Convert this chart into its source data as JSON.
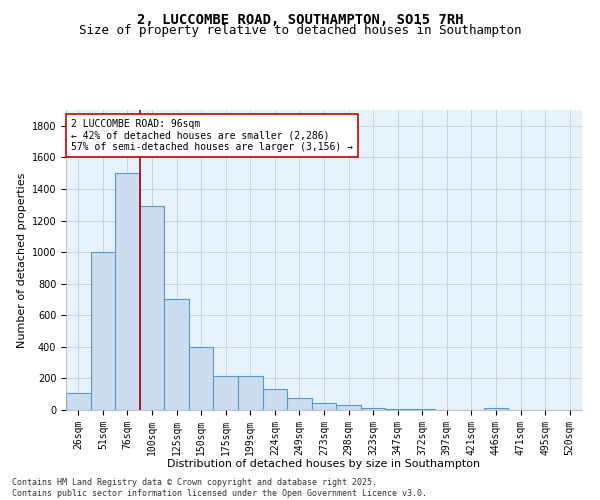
{
  "title_line1": "2, LUCCOMBE ROAD, SOUTHAMPTON, SO15 7RH",
  "title_line2": "Size of property relative to detached houses in Southampton",
  "xlabel": "Distribution of detached houses by size in Southampton",
  "ylabel": "Number of detached properties",
  "bar_color": "#ccddef",
  "bar_edgecolor": "#5599cc",
  "bar_edgewidth": 0.8,
  "ax_facecolor": "#e8f2fa",
  "background_color": "#ffffff",
  "grid_color": "#c0cfe0",
  "categories": [
    "26sqm",
    "51sqm",
    "76sqm",
    "100sqm",
    "125sqm",
    "150sqm",
    "175sqm",
    "199sqm",
    "224sqm",
    "249sqm",
    "273sqm",
    "298sqm",
    "323sqm",
    "347sqm",
    "372sqm",
    "397sqm",
    "421sqm",
    "446sqm",
    "471sqm",
    "495sqm",
    "520sqm"
  ],
  "values": [
    110,
    1000,
    1500,
    1290,
    705,
    400,
    215,
    215,
    135,
    75,
    45,
    30,
    15,
    5,
    5,
    0,
    0,
    15,
    0,
    0,
    0
  ],
  "ylim": [
    0,
    1900
  ],
  "yticks": [
    0,
    200,
    400,
    600,
    800,
    1000,
    1200,
    1400,
    1600,
    1800
  ],
  "vline_color": "#aa0000",
  "annotation_text": "2 LUCCOMBE ROAD: 96sqm\n← 42% of detached houses are smaller (2,286)\n57% of semi-detached houses are larger (3,156) →",
  "annotation_box_color": "#ffffff",
  "annotation_border_color": "#cc0000",
  "footer_text": "Contains HM Land Registry data © Crown copyright and database right 2025.\nContains public sector information licensed under the Open Government Licence v3.0.",
  "title_fontsize": 10,
  "subtitle_fontsize": 9,
  "annotation_fontsize": 7,
  "footer_fontsize": 6,
  "axis_label_fontsize": 8,
  "tick_fontsize": 7
}
